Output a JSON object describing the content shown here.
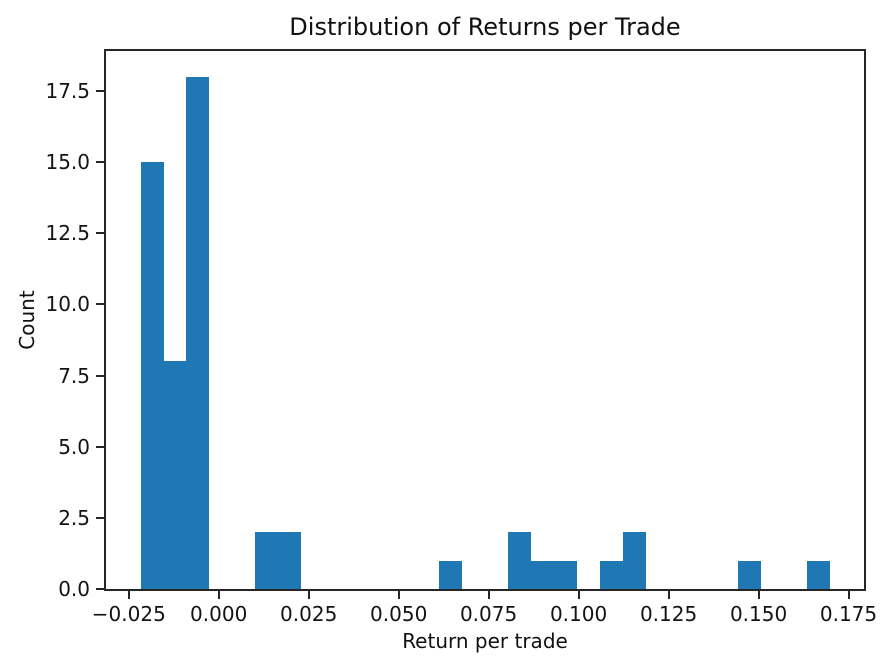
{
  "figure": {
    "background": "#ffffff",
    "text_color": "#141414",
    "axis_color": "#262626"
  },
  "chart_data": {
    "type": "bar",
    "subtype": "histogram",
    "title": "Distribution of Returns per Trade",
    "xlabel": "Return per trade",
    "ylabel": "Count",
    "bar_color": "#1f77b4",
    "grid": false,
    "legend_position": "none",
    "xlim": [
      -0.031322,
      0.179298
    ],
    "ylim": [
      0,
      18.9
    ],
    "bin_edges": [
      -0.021748,
      -0.015366,
      -0.008983,
      -0.002601,
      0.003781,
      0.010164,
      0.016546,
      0.022929,
      0.029311,
      0.035693,
      0.042076,
      0.048458,
      0.054841,
      0.061223,
      0.067605,
      0.073988,
      0.08037,
      0.086753,
      0.093135,
      0.099517,
      0.1059,
      0.112282,
      0.118665,
      0.125047,
      0.131429,
      0.137812,
      0.144194,
      0.150577,
      0.156959,
      0.163341,
      0.169724
    ],
    "counts": [
      15,
      8,
      18,
      0,
      0,
      2,
      2,
      0,
      0,
      0,
      0,
      0,
      0,
      1,
      0,
      0,
      2,
      1,
      1,
      0,
      1,
      2,
      0,
      0,
      0,
      0,
      1,
      0,
      0,
      1
    ],
    "xticks": [
      -0.025,
      0.0,
      0.025,
      0.05,
      0.075,
      0.1,
      0.125,
      0.15,
      0.175
    ],
    "xtick_labels": [
      "−0.025",
      "0.000",
      "0.025",
      "0.050",
      "0.075",
      "0.100",
      "0.125",
      "0.150",
      "0.175"
    ],
    "yticks": [
      0.0,
      2.5,
      5.0,
      7.5,
      10.0,
      12.5,
      15.0,
      17.5
    ],
    "ytick_labels": [
      "0.0",
      "2.5",
      "5.0",
      "7.5",
      "10.0",
      "12.5",
      "15.0",
      "17.5"
    ]
  }
}
